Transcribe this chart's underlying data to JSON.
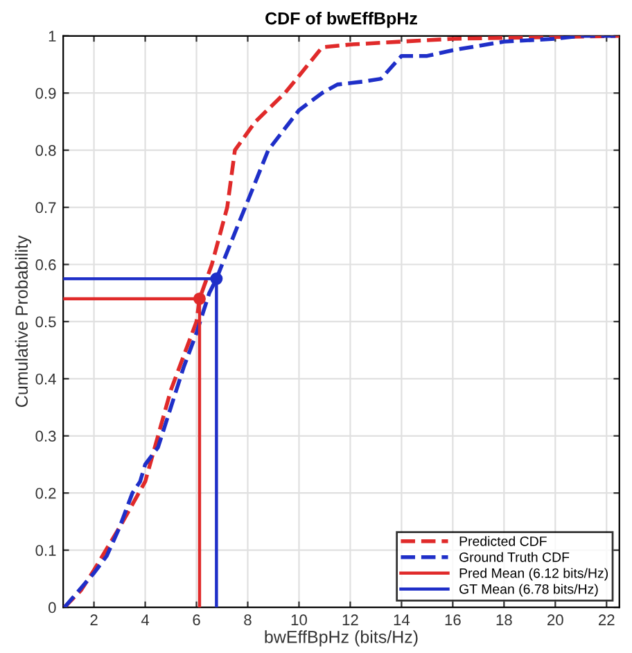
{
  "chart_data": {
    "type": "line",
    "title": "CDF of bwEffBpHz",
    "xlabel": "bwEffBpHz (bits/Hz)",
    "ylabel": "Cumulative Probability",
    "xlim": [
      0.8,
      22.5
    ],
    "ylim": [
      0,
      1
    ],
    "xticks": [
      2,
      4,
      6,
      8,
      10,
      12,
      14,
      16,
      18,
      20,
      22
    ],
    "yticks": [
      0,
      0.1,
      0.2,
      0.3,
      0.4,
      0.5,
      0.6,
      0.7,
      0.8,
      0.9,
      1
    ],
    "grid": true,
    "legend": "bottom right",
    "series": [
      {
        "name": "Predicted CDF",
        "color": "#e02a2a",
        "line_style": "dashed",
        "x": [
          0.85,
          1.5,
          2,
          3,
          4,
          4.5,
          5,
          5.5,
          6,
          6.12,
          6.6,
          7.2,
          7.5,
          8.3,
          9.45,
          10,
          10.9,
          12,
          14,
          16,
          22.5
        ],
        "values": [
          0,
          0.03,
          0.065,
          0.14,
          0.22,
          0.3,
          0.38,
          0.44,
          0.5,
          0.54,
          0.6,
          0.7,
          0.8,
          0.85,
          0.9,
          0.93,
          0.98,
          0.985,
          0.99,
          0.995,
          1
        ]
      },
      {
        "name": "Ground Truth CDF",
        "color": "#1f2fc8",
        "line_style": "dashed",
        "x": [
          0.85,
          2,
          2.5,
          3,
          3.5,
          3.8,
          4,
          4.5,
          5,
          5.5,
          6,
          6.5,
          6.78,
          7,
          7.9,
          8.8,
          10,
          10.9,
          11.5,
          12.5,
          13.2,
          14,
          15,
          16,
          18,
          20,
          21,
          22.5
        ],
        "values": [
          0,
          0.06,
          0.09,
          0.14,
          0.2,
          0.22,
          0.25,
          0.28,
          0.35,
          0.42,
          0.48,
          0.55,
          0.575,
          0.6,
          0.7,
          0.8,
          0.87,
          0.9,
          0.915,
          0.92,
          0.925,
          0.965,
          0.965,
          0.975,
          0.99,
          0.995,
          1,
          1
        ]
      },
      {
        "name": "Pred Mean (6.12 bits/Hz)",
        "color": "#e02a2a",
        "line_style": "solid",
        "x": [
          0.8,
          6.12,
          6.12
        ],
        "values": [
          0.54,
          0.54,
          0
        ]
      },
      {
        "name": "GT Mean (6.78 bits/Hz)",
        "color": "#1f2fc8",
        "line_style": "solid",
        "x": [
          0.8,
          6.78,
          6.78
        ],
        "values": [
          0.575,
          0.575,
          0
        ]
      },
      {
        "type": "scatter",
        "marker": "circle",
        "color": "#e02a2a",
        "x": [
          6.12
        ],
        "values": [
          0.54
        ]
      },
      {
        "type": "scatter",
        "marker": "circle",
        "color": "#1f2fc8",
        "x": [
          6.78
        ],
        "values": [
          0.575
        ]
      }
    ]
  }
}
